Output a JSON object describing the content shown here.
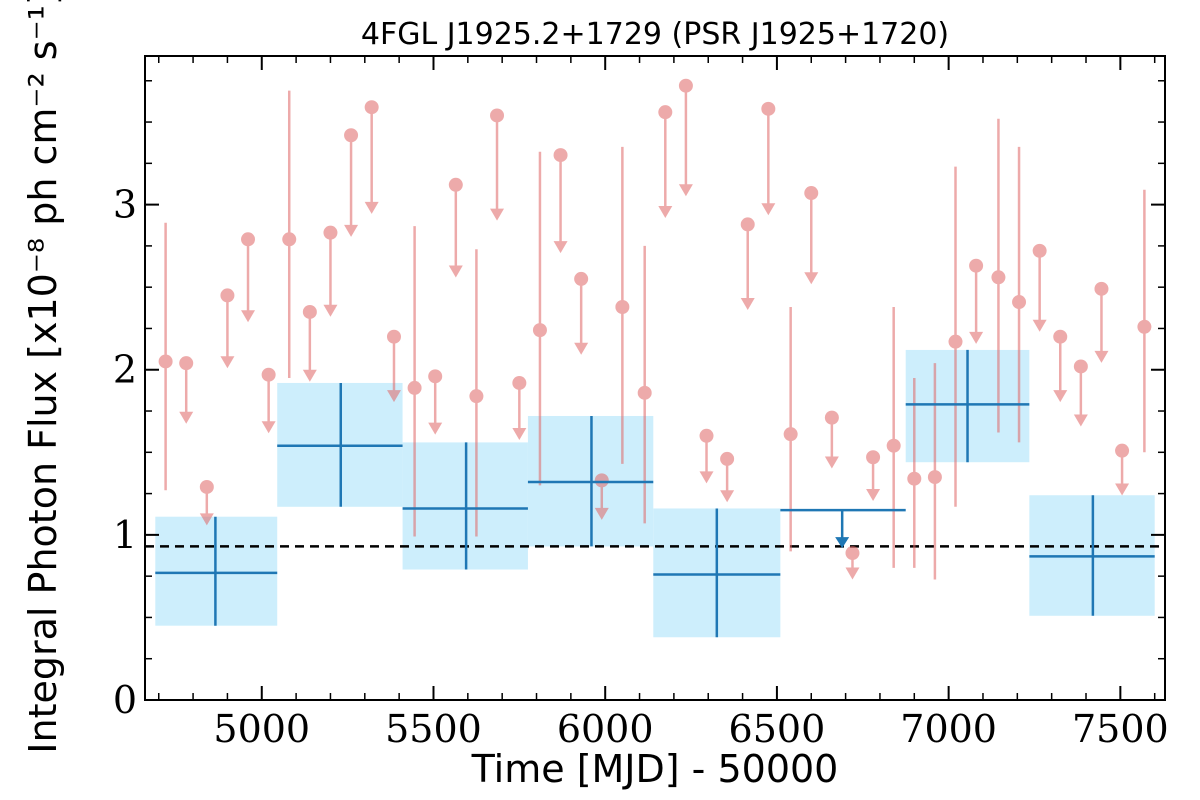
{
  "chart_data": {
    "type": "scatter",
    "title": "4FGL J1925.2+1729 (PSR J1925+1720)",
    "xlabel": "Time [MJD] - 50000",
    "ylabel": "Integral Photon Flux [x10⁻⁸ ph cm⁻² s⁻¹]",
    "xlim": [
      4660,
      7630
    ],
    "ylim": [
      0,
      3.9
    ],
    "x_ticks": [
      {
        "value": 5000,
        "label": "5000"
      },
      {
        "value": 5500,
        "label": "5500"
      },
      {
        "value": 6000,
        "label": "6000"
      },
      {
        "value": 6500,
        "label": "6500"
      },
      {
        "value": 7000,
        "label": "7000"
      },
      {
        "value": 7500,
        "label": "7500"
      }
    ],
    "y_ticks": [
      {
        "value": 0,
        "label": "0"
      },
      {
        "value": 1,
        "label": "1"
      },
      {
        "value": 2,
        "label": "2"
      },
      {
        "value": 3,
        "label": "3"
      }
    ],
    "reference_line": {
      "y": 0.93,
      "style": "dashed",
      "color": "#000000"
    },
    "colors": {
      "detection": "#e06666",
      "bin": "#1f77b4",
      "bin_fill": "#cdeefc"
    },
    "series": [
      {
        "type": "binned",
        "points": [
          {
            "x": 4865,
            "x_lo": 4690,
            "x_hi": 5045,
            "y": 0.77,
            "y_lo": 0.45,
            "y_hi": 1.11,
            "upper_limit": false
          },
          {
            "x": 5230,
            "x_lo": 5045,
            "x_hi": 5410,
            "y": 1.54,
            "y_lo": 1.17,
            "y_hi": 1.92,
            "upper_limit": false
          },
          {
            "x": 5595,
            "x_lo": 5410,
            "x_hi": 5775,
            "y": 1.16,
            "y_lo": 0.79,
            "y_hi": 1.56,
            "upper_limit": false
          },
          {
            "x": 5960,
            "x_lo": 5775,
            "x_hi": 6140,
            "y": 1.32,
            "y_lo": 0.93,
            "y_hi": 1.72,
            "upper_limit": false
          },
          {
            "x": 6325,
            "x_lo": 6140,
            "x_hi": 6510,
            "y": 0.76,
            "y_lo": 0.38,
            "y_hi": 1.16,
            "upper_limit": false
          },
          {
            "x": 6690,
            "x_lo": 6510,
            "x_hi": 6875,
            "y": 1.15,
            "upper_limit": true
          },
          {
            "x": 7055,
            "x_lo": 6875,
            "x_hi": 7235,
            "y": 1.79,
            "y_lo": 1.44,
            "y_hi": 2.12,
            "upper_limit": false
          },
          {
            "x": 7420,
            "x_lo": 7235,
            "x_hi": 7600,
            "y": 0.87,
            "y_lo": 0.51,
            "y_hi": 1.24,
            "upper_limit": false
          }
        ]
      },
      {
        "type": "short_interval",
        "points": [
          {
            "x": 4720,
            "y": 2.05,
            "y_lo": 1.27,
            "y_hi": 2.89,
            "upper_limit": false
          },
          {
            "x": 4780,
            "y": 2.04,
            "upper_limit": true
          },
          {
            "x": 4840,
            "y": 1.29,
            "upper_limit": true
          },
          {
            "x": 4900,
            "y": 2.45,
            "upper_limit": true
          },
          {
            "x": 4960,
            "y": 2.79,
            "upper_limit": true
          },
          {
            "x": 5020,
            "y": 1.97,
            "upper_limit": true
          },
          {
            "x": 5080,
            "y": 2.79,
            "y_lo": 1.95,
            "y_hi": 3.69,
            "upper_limit": false
          },
          {
            "x": 5140,
            "y": 2.35,
            "upper_limit": true
          },
          {
            "x": 5200,
            "y": 2.83,
            "upper_limit": true
          },
          {
            "x": 5260,
            "y": 3.42,
            "upper_limit": true
          },
          {
            "x": 5320,
            "y": 3.59,
            "upper_limit": true
          },
          {
            "x": 5385,
            "y": 2.2,
            "upper_limit": true
          },
          {
            "x": 5445,
            "y": 1.89,
            "y_lo": 0.99,
            "y_hi": 2.87,
            "upper_limit": false
          },
          {
            "x": 5505,
            "y": 1.96,
            "upper_limit": true
          },
          {
            "x": 5565,
            "y": 3.12,
            "upper_limit": true
          },
          {
            "x": 5625,
            "y": 1.84,
            "y_lo": 0.99,
            "y_hi": 2.73,
            "upper_limit": false
          },
          {
            "x": 5685,
            "y": 3.54,
            "upper_limit": true
          },
          {
            "x": 5750,
            "y": 1.92,
            "upper_limit": true
          },
          {
            "x": 5810,
            "y": 2.24,
            "y_lo": 1.3,
            "y_hi": 3.32,
            "upper_limit": false
          },
          {
            "x": 5870,
            "y": 3.3,
            "upper_limit": true
          },
          {
            "x": 5930,
            "y": 2.55,
            "upper_limit": true
          },
          {
            "x": 5990,
            "y": 1.33,
            "upper_limit": true
          },
          {
            "x": 6050,
            "y": 2.38,
            "y_lo": 1.43,
            "y_hi": 3.35,
            "upper_limit": false
          },
          {
            "x": 6115,
            "y": 1.86,
            "y_lo": 1.07,
            "y_hi": 2.75,
            "upper_limit": false
          },
          {
            "x": 6175,
            "y": 3.56,
            "upper_limit": true
          },
          {
            "x": 6235,
            "y": 3.72,
            "upper_limit": true
          },
          {
            "x": 6295,
            "y": 1.6,
            "upper_limit": true
          },
          {
            "x": 6355,
            "y": 1.46,
            "upper_limit": true
          },
          {
            "x": 6415,
            "y": 2.88,
            "upper_limit": true
          },
          {
            "x": 6475,
            "y": 3.58,
            "upper_limit": true
          },
          {
            "x": 6540,
            "y": 1.61,
            "y_lo": 0.9,
            "y_hi": 2.38,
            "upper_limit": false
          },
          {
            "x": 6600,
            "y": 3.07,
            "upper_limit": true
          },
          {
            "x": 6660,
            "y": 1.71,
            "upper_limit": true
          },
          {
            "x": 6720,
            "y": 0.89,
            "upper_limit": true
          },
          {
            "x": 6780,
            "y": 1.47,
            "upper_limit": true
          },
          {
            "x": 6840,
            "y": 1.54,
            "y_lo": 0.8,
            "y_hi": 2.38,
            "upper_limit": false
          },
          {
            "x": 6900,
            "y": 1.34,
            "y_lo": 0.8,
            "y_hi": 1.95,
            "upper_limit": false
          },
          {
            "x": 6960,
            "y": 1.35,
            "y_lo": 0.73,
            "y_hi": 2.04,
            "upper_limit": false
          },
          {
            "x": 7020,
            "y": 2.17,
            "y_lo": 1.17,
            "y_hi": 3.23,
            "upper_limit": false
          },
          {
            "x": 7080,
            "y": 2.63,
            "upper_limit": true
          },
          {
            "x": 7145,
            "y": 2.56,
            "y_lo": 1.62,
            "y_hi": 3.52,
            "upper_limit": false
          },
          {
            "x": 7205,
            "y": 2.41,
            "y_lo": 1.56,
            "y_hi": 3.35,
            "upper_limit": false
          },
          {
            "x": 7265,
            "y": 2.72,
            "upper_limit": true
          },
          {
            "x": 7325,
            "y": 2.2,
            "upper_limit": true
          },
          {
            "x": 7385,
            "y": 2.02,
            "upper_limit": true
          },
          {
            "x": 7445,
            "y": 2.49,
            "upper_limit": true
          },
          {
            "x": 7505,
            "y": 1.51,
            "upper_limit": true
          },
          {
            "x": 7570,
            "y": 2.26,
            "y_lo": 1.5,
            "y_hi": 3.09,
            "upper_limit": false
          }
        ]
      }
    ]
  }
}
